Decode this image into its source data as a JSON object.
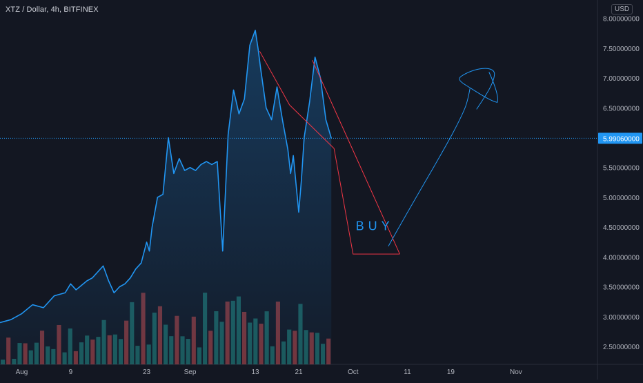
{
  "header": {
    "symbol_title": "XTZ / Dollar, 4h, BITFINEX",
    "currency": "USD"
  },
  "chart_data": {
    "type": "area",
    "ylim": [
      2.2,
      8.1
    ],
    "y_ticks": [
      "2.50000000",
      "3.00000000",
      "3.50000000",
      "4.00000000",
      "4.50000000",
      "5.00000000",
      "5.50000000",
      "6.00000000",
      "6.50000000",
      "7.00000000",
      "7.50000000",
      "8.00000000"
    ],
    "y_tick_values": [
      2.5,
      3.0,
      3.5,
      4.0,
      4.5,
      5.0,
      5.5,
      6.0,
      6.5,
      7.0,
      7.5,
      8.0
    ],
    "x_ticks": [
      "Aug",
      "9",
      "23",
      "Sep",
      "13",
      "21",
      "Oct",
      "11",
      "19",
      "Nov"
    ],
    "x_tick_days": [
      0,
      9,
      23,
      31,
      43,
      51,
      61,
      71,
      79,
      91
    ],
    "xlim": [
      -4,
      106
    ],
    "last_price": 5.9906,
    "last_price_label": "5.99060000",
    "series": [
      {
        "x": [
          -4,
          -2,
          0,
          2,
          4,
          6,
          8,
          9,
          10,
          12,
          13,
          14,
          15,
          16,
          17,
          18,
          19,
          20,
          21,
          22,
          23,
          23.5,
          24,
          25,
          26,
          27,
          28,
          29,
          30,
          31,
          32,
          33,
          34,
          35,
          36,
          37,
          38,
          39,
          40,
          41,
          42,
          43,
          43.5,
          44,
          45,
          46,
          47,
          48,
          49,
          49.5,
          50,
          51,
          51.5,
          52,
          53,
          54,
          55,
          56,
          57
        ],
        "y": [
          2.9,
          2.95,
          3.05,
          3.2,
          3.15,
          3.35,
          3.4,
          3.55,
          3.45,
          3.6,
          3.65,
          3.75,
          3.85,
          3.6,
          3.4,
          3.5,
          3.55,
          3.65,
          3.8,
          3.9,
          4.25,
          4.1,
          4.5,
          5.0,
          5.05,
          6.0,
          5.4,
          5.65,
          5.45,
          5.5,
          5.45,
          5.55,
          5.6,
          5.55,
          5.6,
          4.1,
          6.05,
          6.8,
          6.4,
          6.65,
          7.55,
          7.8,
          7.5,
          7.15,
          6.5,
          6.3,
          6.85,
          6.3,
          5.8,
          5.4,
          5.7,
          4.75,
          5.3,
          6.0,
          6.6,
          7.35,
          7.0,
          6.3,
          5.99
        ],
        "color": "#2196f3"
      }
    ],
    "volume": [
      0.15,
      0.3,
      0.12,
      0.25,
      0.35,
      0.18,
      0.3,
      0.5,
      0.22,
      0.28,
      0.45,
      0.3,
      0.4,
      0.35,
      0.25,
      0.55,
      0.3,
      0.42,
      0.6,
      0.38,
      0.48,
      0.3,
      0.9,
      0.7,
      0.55,
      0.8,
      0.45,
      0.6,
      1.0,
      0.5,
      0.4,
      0.7,
      0.35,
      0.45,
      0.55,
      0.4,
      0.8,
      0.95,
      0.6,
      0.85,
      0.75,
      1.0,
      0.9,
      0.7,
      0.65,
      0.55,
      0.8,
      0.6,
      0.5,
      0.7,
      0.55,
      0.4,
      0.6,
      0.75,
      0.5,
      0.45,
      0.4,
      0.35,
      0.3
    ],
    "annotations": {
      "buy_text": "BUY",
      "triangle": [
        [
          43.8,
          7.45
        ],
        [
          61,
          4.05
        ],
        [
          69.6,
          4.05
        ]
      ],
      "triangle_left_leg": [
        [
          49.3,
          6.55
        ],
        [
          57.5,
          5.82
        ]
      ],
      "triangle_right_leg": [
        [
          53.5,
          7.3
        ],
        [
          69.6,
          4.05
        ]
      ],
      "arrow_curve": [
        [
          67.5,
          4.18
        ],
        [
          72.5,
          5.0
        ],
        [
          77.2,
          5.7
        ],
        [
          79.5,
          6.1
        ],
        [
          81,
          6.5
        ]
      ],
      "loop": [
        [
          81,
          6.5
        ],
        [
          83,
          6.98
        ],
        [
          86.2,
          7.06
        ],
        [
          86.2,
          6.5
        ],
        [
          81.8,
          6.95
        ],
        [
          82.5,
          6.88
        ],
        [
          86.3,
          6.55
        ]
      ],
      "line_color": "#f23645",
      "curve_color": "#2196f3"
    }
  }
}
